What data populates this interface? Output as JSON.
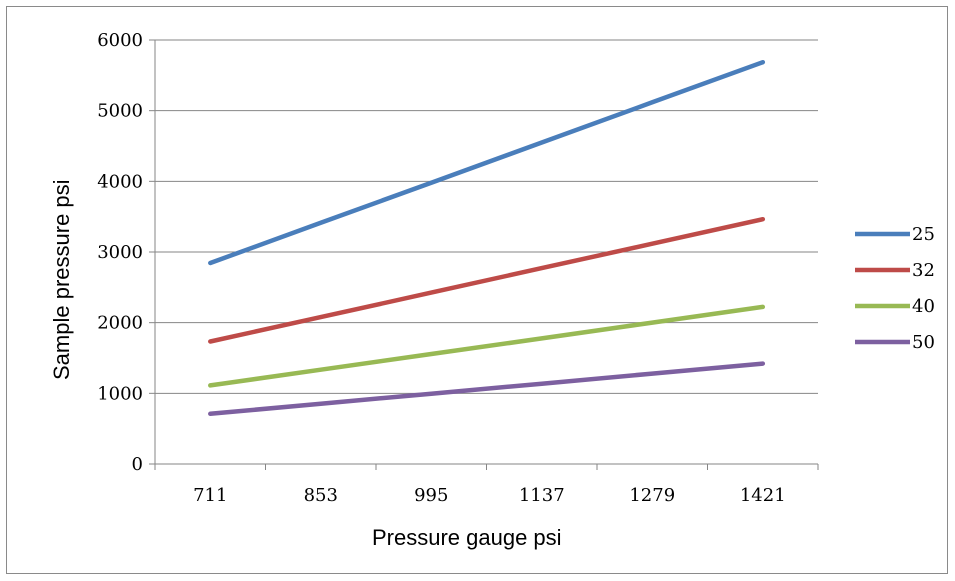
{
  "chart_data": {
    "type": "line",
    "xlabel": "Pressure gauge psi",
    "ylabel": "Sample pressure psi",
    "categories": [
      "711",
      "853",
      "995",
      "1137",
      "1279",
      "1421"
    ],
    "ylim": [
      0,
      6000
    ],
    "yticks": [
      0,
      1000,
      2000,
      3000,
      4000,
      5000,
      6000
    ],
    "grid": true,
    "legend_position": "right",
    "series": [
      {
        "name": "25",
        "color": "#4a7ebb",
        "values": [
          2845,
          3413,
          3981,
          4550,
          5118,
          5686
        ]
      },
      {
        "name": "32",
        "color": "#be4b48",
        "values": [
          1733,
          2079,
          2425,
          2772,
          3118,
          3464
        ]
      },
      {
        "name": "40",
        "color": "#98b954",
        "values": [
          1112,
          1334,
          1556,
          1778,
          2001,
          2223
        ]
      },
      {
        "name": "50",
        "color": "#7d60a0",
        "values": [
          711,
          853,
          995,
          1137,
          1279,
          1421
        ]
      }
    ]
  }
}
